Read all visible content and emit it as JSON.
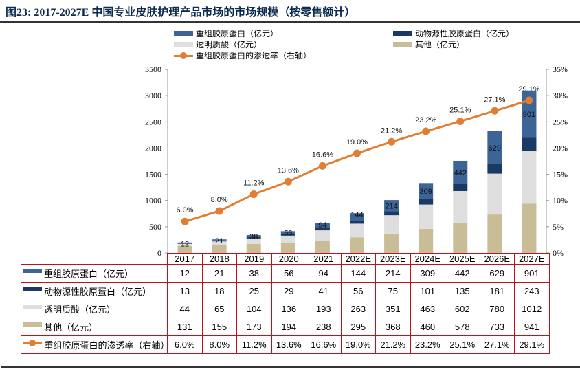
{
  "title": "图23: 2017-2027E 中国专业皮肤护理产品市场的市场规模（按零售额计）",
  "chart_data": {
    "type": "bar",
    "stacked": true,
    "title": "2017-2027E 中国专业皮肤护理产品市场的市场规模（按零售额计）",
    "categories": [
      "2017",
      "2018",
      "2019",
      "2020",
      "2021",
      "2022E",
      "2023E",
      "2024E",
      "2025E",
      "2026E",
      "2027E"
    ],
    "series": [
      {
        "name": "其他（亿元）",
        "type": "bar",
        "color": "#c9bd97",
        "values": [
          131,
          155,
          173,
          194,
          238,
          295,
          368,
          460,
          578,
          733,
          941
        ]
      },
      {
        "name": "透明质酸（亿元）",
        "type": "bar",
        "color": "#dedede",
        "values": [
          44,
          65,
          104,
          136,
          193,
          263,
          351,
          463,
          602,
          780,
          1012
        ]
      },
      {
        "name": "动物源性胶原蛋白（亿元）",
        "type": "bar",
        "color": "#1b3a63",
        "values": [
          13,
          18,
          25,
          29,
          41,
          56,
          75,
          101,
          135,
          181,
          243
        ]
      },
      {
        "name": "重组胶原蛋白（亿元）",
        "type": "bar",
        "color": "#3c6497",
        "values": [
          12,
          21,
          38,
          56,
          94,
          144,
          214,
          309,
          442,
          629,
          901
        ],
        "data_labels": true
      },
      {
        "name": "重组胶原蛋白的渗透率（右轴）",
        "type": "line",
        "axis": "right",
        "color": "#e07f34",
        "values": [
          6.0,
          8.0,
          11.2,
          13.6,
          16.6,
          19.0,
          21.2,
          23.2,
          25.1,
          27.1,
          29.1
        ],
        "labels": [
          "6.0%",
          "8.0%",
          "11.2%",
          "13.6%",
          "16.6%",
          "19.0%",
          "21.2%",
          "23.2%",
          "25.1%",
          "27.1%",
          "29.1%"
        ]
      }
    ],
    "ylim": [
      0,
      3500
    ],
    "yticks": [
      0,
      500,
      1000,
      1500,
      2000,
      2500,
      3000,
      3500
    ],
    "y2lim": [
      0,
      35
    ],
    "y2ticks": [
      "0%",
      "5%",
      "10%",
      "15%",
      "20%",
      "25%",
      "30%",
      "35%"
    ],
    "y2tick_values": [
      0,
      5,
      10,
      15,
      20,
      25,
      30,
      35
    ],
    "xlabel": "",
    "ylabel": "",
    "grid": false,
    "legend": "top"
  },
  "legend": {
    "recombinant": "重组胶原蛋白（亿元）",
    "animal": "动物源性胶原蛋白（亿元）",
    "hyaluronic": "透明质酸（亿元）",
    "other": "其他（亿元）",
    "penetration": "重组胶原蛋白的渗透率（右轴）"
  },
  "table": {
    "rows": [
      {
        "label": "重组胶原蛋白（亿元）",
        "color": "#3c6497",
        "cells": [
          "12",
          "21",
          "38",
          "56",
          "94",
          "144",
          "214",
          "309",
          "442",
          "629",
          "901"
        ]
      },
      {
        "label": "动物源性胶原蛋白（亿元）",
        "color": "#1b3a63",
        "cells": [
          "13",
          "18",
          "25",
          "29",
          "41",
          "56",
          "75",
          "101",
          "135",
          "181",
          "243"
        ]
      },
      {
        "label": "透明质酸（亿元）",
        "color": "#dedede",
        "cells": [
          "44",
          "65",
          "104",
          "136",
          "193",
          "263",
          "351",
          "463",
          "602",
          "780",
          "1012"
        ]
      },
      {
        "label": "其他（亿元）",
        "color": "#c9bd97",
        "cells": [
          "131",
          "155",
          "173",
          "194",
          "238",
          "295",
          "368",
          "460",
          "578",
          "733",
          "941"
        ]
      },
      {
        "label": "重组胶原蛋白的渗透率（右轴）",
        "color": "#e07f34",
        "line": true,
        "cells": [
          "6.0%",
          "8.0%",
          "11.2%",
          "13.6%",
          "16.6%",
          "19.0%",
          "21.2%",
          "23.2%",
          "25.1%",
          "27.1%",
          "29.1%"
        ]
      }
    ]
  }
}
